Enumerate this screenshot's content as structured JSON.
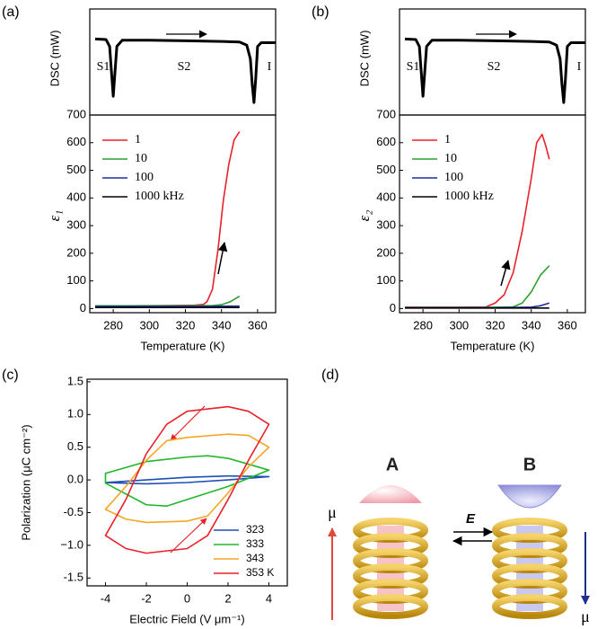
{
  "chart_data": [
    {
      "type": "line",
      "panel": "(a)",
      "ylabel": "DSC (mW)",
      "xlim": [
        267,
        370
      ],
      "ylim": [
        -1.2,
        0.5
      ],
      "annotations": [
        "S1",
        "S2",
        "I"
      ],
      "series": [
        {
          "color": "#000000",
          "x": [
            270,
            276,
            278,
            279,
            280,
            281,
            282,
            285,
            300,
            320,
            340,
            350,
            354,
            356,
            357,
            358,
            359,
            360,
            362,
            370
          ],
          "values": [
            0.02,
            0.01,
            -0.1,
            -0.5,
            -0.9,
            -0.5,
            -0.1,
            0,
            0,
            -0.01,
            -0.02,
            -0.03,
            -0.08,
            -0.3,
            -0.7,
            -1,
            -0.6,
            -0.1,
            -0.04,
            -0.04
          ]
        }
      ]
    },
    {
      "type": "line",
      "xlabel": "Temperature (K)",
      "ylabel": "ε₁",
      "xlim": [
        267,
        370
      ],
      "ylim": [
        -15,
        700
      ],
      "xticks": [
        280,
        300,
        320,
        340,
        360
      ],
      "yticks": [
        0,
        100,
        200,
        300,
        400,
        500,
        600,
        700
      ],
      "legend": "upper left",
      "series": [
        {
          "name": "1",
          "color": "#e8212a",
          "x": [
            270,
            290,
            310,
            325,
            330,
            332,
            335,
            338,
            341,
            344,
            347,
            350
          ],
          "values": [
            10,
            10,
            11,
            12,
            15,
            25,
            70,
            210,
            390,
            520,
            610,
            640
          ]
        },
        {
          "name": "10",
          "color": "#2ca02c",
          "x": [
            270,
            300,
            320,
            335,
            340,
            345,
            350
          ],
          "values": [
            10,
            10,
            10,
            11,
            14,
            25,
            45
          ]
        },
        {
          "name": "100",
          "color": "#1f2fa0",
          "x": [
            270,
            300,
            330,
            350
          ],
          "values": [
            8,
            8,
            8,
            9
          ]
        },
        {
          "name": "1000 kHz",
          "color": "#000000",
          "x": [
            270,
            300,
            330,
            350
          ],
          "values": [
            4,
            4,
            4,
            4
          ]
        }
      ]
    },
    {
      "type": "line",
      "panel": "(b)",
      "ylabel": "DSC (mW)",
      "xlim": [
        267,
        370
      ],
      "ylim": [
        -1.2,
        0.5
      ],
      "annotations": [
        "S1",
        "S2",
        "I"
      ],
      "series": [
        {
          "color": "#000000",
          "x": [
            270,
            276,
            278,
            279,
            280,
            281,
            282,
            285,
            300,
            320,
            340,
            350,
            354,
            356,
            357,
            358,
            359,
            360,
            362,
            370
          ],
          "values": [
            0.02,
            0.01,
            -0.1,
            -0.5,
            -0.9,
            -0.5,
            -0.1,
            0,
            0,
            -0.01,
            -0.02,
            -0.03,
            -0.08,
            -0.3,
            -0.7,
            -1,
            -0.6,
            -0.1,
            -0.04,
            -0.04
          ]
        }
      ]
    },
    {
      "type": "line",
      "xlabel": "Temperature (K)",
      "ylabel": "ε₂",
      "xlim": [
        267,
        370
      ],
      "ylim": [
        -15,
        700
      ],
      "xticks": [
        280,
        300,
        320,
        340,
        360
      ],
      "yticks": [
        0,
        100,
        200,
        300,
        400,
        500,
        600,
        700
      ],
      "legend": "upper left",
      "series": [
        {
          "name": "1",
          "color": "#e8212a",
          "x": [
            270,
            300,
            315,
            320,
            325,
            330,
            335,
            340,
            343,
            346,
            348,
            350
          ],
          "values": [
            5,
            5,
            6,
            20,
            50,
            130,
            280,
            470,
            600,
            630,
            590,
            540
          ]
        },
        {
          "name": "10",
          "color": "#2ca02c",
          "x": [
            270,
            310,
            330,
            335,
            340,
            345,
            350
          ],
          "values": [
            4,
            4,
            6,
            20,
            60,
            120,
            155
          ]
        },
        {
          "name": "100",
          "color": "#1f2fa0",
          "x": [
            270,
            320,
            340,
            345,
            350
          ],
          "values": [
            3,
            3,
            5,
            10,
            20
          ]
        },
        {
          "name": "1000 kHz",
          "color": "#000000",
          "x": [
            270,
            310,
            350
          ],
          "values": [
            2,
            2,
            2
          ]
        }
      ]
    },
    {
      "type": "loop",
      "panel": "(c)",
      "xlabel": "Electric Field (V μm⁻¹)",
      "ylabel": "Polarization (μC cm⁻²)",
      "xlim": [
        -4.9,
        4.9
      ],
      "ylim": [
        -1.62,
        1.54
      ],
      "xticks": [
        -4,
        -2,
        0,
        2,
        4
      ],
      "yticks": [
        -1.5,
        {
          "value": -1,
          "label": "−1.0"
        },
        -0.5,
        {
          "value": 0,
          "label": "0.0"
        },
        0.5,
        {
          "value": 1,
          "label": "1.0"
        },
        1.5
      ],
      "legend": "lower right",
      "series": [
        {
          "name": "323",
          "color": "#1f4fb4",
          "x": [
            -4,
            -2,
            0,
            2,
            4,
            2,
            0,
            -2,
            -4
          ],
          "values": [
            -0.04,
            0.0,
            0.04,
            0.06,
            0.05,
            0.0,
            -0.04,
            -0.06,
            -0.04
          ]
        },
        {
          "name": "333",
          "color": "#1fb82a",
          "x": [
            -4,
            -2,
            0,
            1,
            2,
            4,
            2,
            0,
            -1,
            -2,
            -4
          ],
          "values": [
            0.1,
            0.28,
            0.35,
            0.37,
            0.33,
            0.15,
            -0.1,
            -0.3,
            -0.4,
            -0.38,
            -0.05
          ]
        },
        {
          "name": "343",
          "color": "#f5a623",
          "x": [
            -4,
            -3,
            -2,
            -1,
            0,
            2,
            3,
            4,
            3,
            2,
            1,
            0,
            -2,
            -3,
            -4
          ],
          "values": [
            -0.45,
            -0.1,
            0.3,
            0.6,
            0.65,
            0.7,
            0.68,
            0.5,
            0.2,
            -0.2,
            -0.55,
            -0.63,
            -0.65,
            -0.6,
            -0.45
          ]
        },
        {
          "name": "353 K",
          "color": "#e8212a",
          "x": [
            -4,
            -3,
            -2,
            -1,
            0,
            2,
            3,
            4,
            3,
            2,
            1,
            0,
            -2,
            -3,
            -4
          ],
          "values": [
            -0.85,
            -0.3,
            0.4,
            0.85,
            1.05,
            1.12,
            1.05,
            0.85,
            0.3,
            -0.3,
            -0.85,
            -1.05,
            -1.12,
            -1.05,
            -0.85
          ]
        }
      ]
    }
  ],
  "diagram": {
    "panel": "(d)",
    "state_a": "A",
    "state_b": "B",
    "field": "E",
    "dipole_a": "μ",
    "dipole_b": "μ"
  }
}
